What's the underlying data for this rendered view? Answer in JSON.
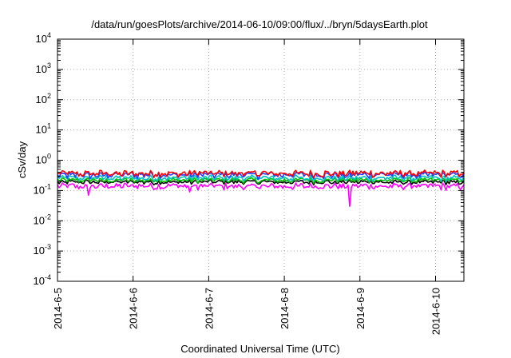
{
  "chart_data": {
    "type": "line",
    "title": "/data/run/goesPlots/archive/2014-06-10/09:00/flux/../bryn/5daysEarth.plot",
    "xlabel": "Coordinated Universal Time (UTC)",
    "ylabel": "cSv/day",
    "x_range": [
      "2014-06-05",
      "2014-06-10 09:00"
    ],
    "x_ticks": [
      "2014-6-5",
      "2014-6-6",
      "2014-6-7",
      "2014-6-8",
      "2014-6-9",
      "2014-6-10"
    ],
    "y_scale": "log",
    "ylim": [
      0.0001,
      10000
    ],
    "y_ticks": [
      {
        "base": "10",
        "exp": "-4"
      },
      {
        "base": "10",
        "exp": "-3"
      },
      {
        "base": "10",
        "exp": "-2"
      },
      {
        "base": "10",
        "exp": "-1"
      },
      {
        "base": "10",
        "exp": "0"
      },
      {
        "base": "10",
        "exp": "1"
      },
      {
        "base": "10",
        "exp": "2"
      },
      {
        "base": "10",
        "exp": "3"
      },
      {
        "base": "10",
        "exp": "4"
      }
    ],
    "grid": true,
    "series": [
      {
        "color": "#ff0000",
        "base": 0.37,
        "amp": 0.11,
        "values": []
      },
      {
        "color": "#2040ff",
        "base": 0.33,
        "amp": 0.1,
        "values": []
      },
      {
        "color": "#00c0c0",
        "base": 0.26,
        "amp": 0.07,
        "values": []
      },
      {
        "color": "#00c000",
        "base": 0.22,
        "amp": 0.05,
        "values": []
      },
      {
        "color": "#000000",
        "base": 0.19,
        "amp": 0.04,
        "values": []
      },
      {
        "color": "#ff00ff",
        "base": 0.14,
        "amp": 0.04,
        "values": []
      }
    ],
    "dips": [
      {
        "series": 5,
        "x": "2014-06-05 10:00",
        "value": 0.07
      },
      {
        "series": 5,
        "x": "2014-06-08 20:30",
        "value": 0.03
      },
      {
        "series": 5,
        "x": "2014-06-06 18:00",
        "value": 0.09
      }
    ]
  }
}
